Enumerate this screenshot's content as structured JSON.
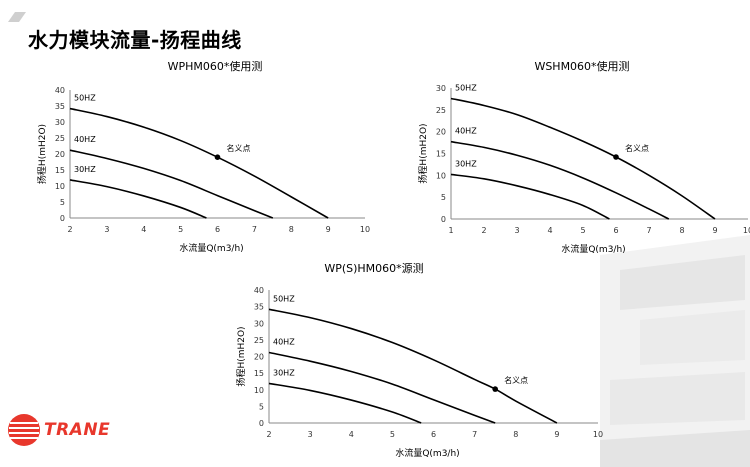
{
  "page": {
    "title": "水力模块流量-扬程曲线",
    "logo_text": "TRANE",
    "accent_color": "#e8372c",
    "line_color": "#000000"
  },
  "chart_data": [
    {
      "type": "line",
      "title": "WPHM060*使用测",
      "xlabel": "水流量Q(m3/h)",
      "ylabel": "扬程H(mH2O)",
      "xlim": [
        2,
        10
      ],
      "ylim": [
        0,
        40
      ],
      "xticks": [
        2,
        3,
        4,
        5,
        6,
        7,
        8,
        9,
        10
      ],
      "yticks": [
        0,
        5,
        10,
        15,
        20,
        25,
        30,
        35,
        40
      ],
      "grid": false,
      "series": [
        {
          "name": "50HZ",
          "x": [
            2,
            3,
            4,
            5,
            6,
            7,
            8,
            9
          ],
          "y": [
            34.2,
            31.7,
            28.4,
            24.2,
            19.0,
            13.1,
            6.6,
            0
          ]
        },
        {
          "name": "40HZ",
          "x": [
            2,
            3,
            4,
            5,
            6,
            7,
            7.5
          ],
          "y": [
            21.2,
            18.6,
            15.5,
            11.7,
            7.0,
            2.3,
            0
          ]
        },
        {
          "name": "30HZ",
          "x": [
            2,
            3,
            4,
            5,
            5.7
          ],
          "y": [
            11.9,
            9.8,
            6.9,
            3.3,
            0
          ]
        }
      ],
      "annotation": {
        "text": "名义点",
        "x": 6,
        "y": 19.0
      }
    },
    {
      "type": "line",
      "title": "WSHM060*使用测",
      "xlabel": "水流量Q(m3/h)",
      "ylabel": "扬程H(mH2O)",
      "xlim": [
        1,
        10
      ],
      "ylim": [
        0,
        30
      ],
      "xticks": [
        1,
        2,
        3,
        4,
        5,
        6,
        7,
        8,
        9,
        10
      ],
      "yticks": [
        0,
        5,
        10,
        15,
        20,
        25,
        30
      ],
      "grid": false,
      "series": [
        {
          "name": "50HZ",
          "x": [
            1,
            2,
            3,
            4,
            5,
            6,
            7,
            8,
            9
          ],
          "y": [
            27.6,
            26.0,
            23.9,
            21.0,
            17.8,
            14.2,
            10.0,
            5.3,
            0
          ]
        },
        {
          "name": "40HZ",
          "x": [
            1,
            2,
            3,
            4,
            5,
            6,
            7,
            7.6
          ],
          "y": [
            17.7,
            16.4,
            14.6,
            12.3,
            9.4,
            6.0,
            2.3,
            0
          ]
        },
        {
          "name": "30HZ",
          "x": [
            1,
            2,
            3,
            4,
            5,
            5.8
          ],
          "y": [
            10.2,
            9.2,
            7.6,
            5.6,
            3.1,
            0
          ]
        }
      ],
      "annotation": {
        "text": "名义点",
        "x": 6,
        "y": 14.2
      }
    },
    {
      "type": "line",
      "title": "WP(S)HM060*源测",
      "xlabel": "水流量Q(m3/h)",
      "ylabel": "扬程H(mH2O)",
      "xlim": [
        2,
        10
      ],
      "ylim": [
        0,
        40
      ],
      "xticks": [
        2,
        3,
        4,
        5,
        6,
        7,
        8,
        9,
        10
      ],
      "yticks": [
        0,
        5,
        10,
        15,
        20,
        25,
        30,
        35,
        40
      ],
      "grid": false,
      "series": [
        {
          "name": "50HZ",
          "x": [
            2,
            3,
            4,
            5,
            6,
            7,
            7.5,
            8,
            9
          ],
          "y": [
            34.2,
            31.7,
            28.4,
            24.2,
            19.0,
            13.1,
            10.2,
            6.6,
            0
          ]
        },
        {
          "name": "40HZ",
          "x": [
            2,
            3,
            4,
            5,
            6,
            7,
            7.5
          ],
          "y": [
            21.2,
            18.6,
            15.5,
            11.7,
            7.0,
            2.3,
            0
          ]
        },
        {
          "name": "30HZ",
          "x": [
            2,
            3,
            4,
            5,
            5.7
          ],
          "y": [
            11.9,
            9.8,
            6.9,
            3.3,
            0
          ]
        }
      ],
      "annotation": {
        "text": "名义点",
        "x": 7.5,
        "y": 10.2
      }
    }
  ]
}
